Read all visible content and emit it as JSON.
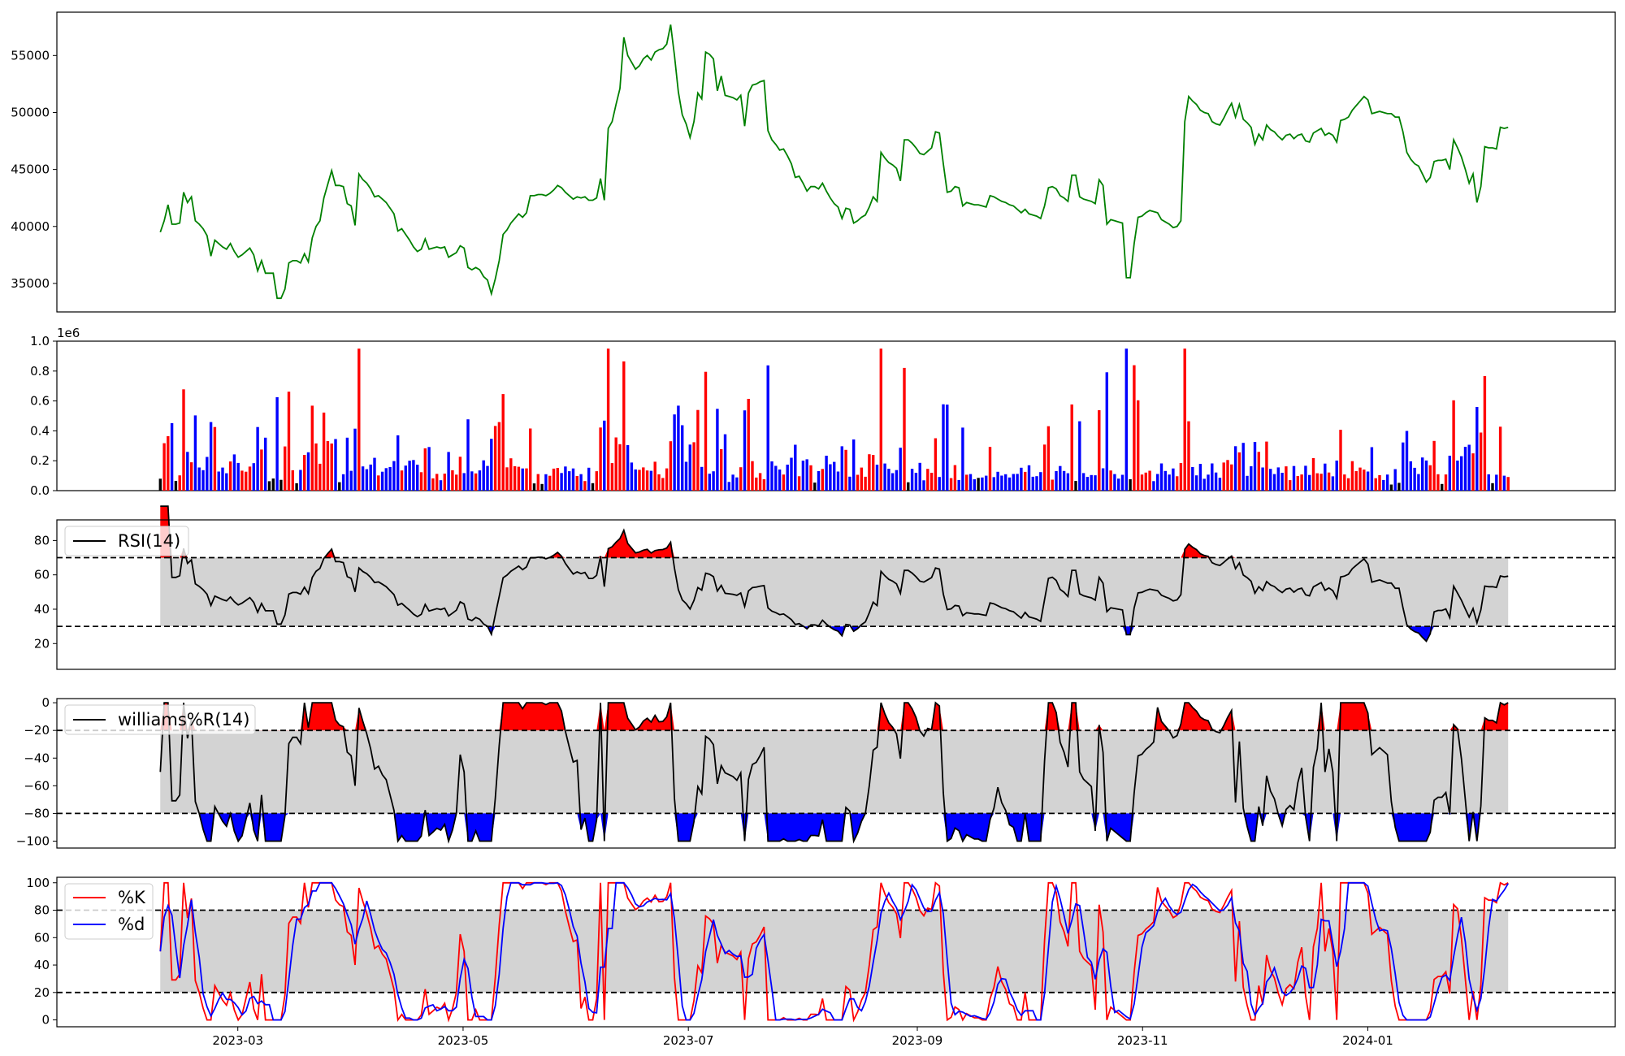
{
  "chart_data": [
    {
      "id": "price",
      "type": "line",
      "color": "#008000",
      "ylim": [
        32500,
        58800
      ],
      "yticks": [
        "35000",
        "40000",
        "45000",
        "50000",
        "55000"
      ],
      "x_start": "2023-02-08",
      "x_end": "2024-02-08",
      "values": [
        39500,
        40500,
        41900,
        40200,
        40200,
        40300,
        43000,
        42100,
        42600,
        40500,
        40200,
        39800,
        39200,
        37400,
        38800,
        38500,
        38200,
        38000,
        38500,
        37800,
        37300,
        37500,
        37800,
        38100,
        37500,
        36100,
        37000,
        35900,
        35900,
        35900,
        33700,
        33700,
        34500,
        36800,
        37000,
        37000,
        36800,
        37600,
        36900,
        39000,
        40000,
        40500,
        42500,
        43700,
        44900,
        43600,
        43600,
        43500,
        42000,
        41800,
        40100,
        44600,
        44100,
        43800,
        43300,
        42600,
        42700,
        42400,
        42100,
        41600,
        41100,
        39600,
        39800,
        39300,
        38800,
        38200,
        37800,
        38000,
        38900,
        38000,
        38100,
        38200,
        38100,
        38200,
        37300,
        37500,
        37700,
        38300,
        38100,
        36400,
        36200,
        36400,
        36200,
        35600,
        35300,
        34100,
        35400,
        37000,
        39300,
        39700,
        40300,
        40700,
        41100,
        40800,
        41200,
        42700,
        42700,
        42800,
        42800,
        42700,
        42900,
        43200,
        43600,
        43400,
        43000,
        42700,
        42400,
        42600,
        42500,
        42600,
        42300,
        42300,
        42500,
        44200,
        42300,
        48600,
        49200,
        50700,
        52100,
        56600,
        55000,
        54400,
        53800,
        54100,
        54700,
        55000,
        54600,
        55300,
        55500,
        55600,
        56000,
        57700,
        55000,
        51800,
        49800,
        49000,
        47800,
        49200,
        51700,
        51200,
        55300,
        55100,
        54700,
        51900,
        53200,
        51500,
        51400,
        51300,
        51100,
        51500,
        48800,
        51700,
        52400,
        52500,
        52700,
        52800,
        48400,
        47600,
        47200,
        46700,
        46800,
        46200,
        45500,
        44300,
        44400,
        43800,
        43100,
        43500,
        43500,
        43300,
        43800,
        43100,
        42500,
        42000,
        41700,
        40700,
        41600,
        41500,
        40300,
        40500,
        40800,
        41000,
        41700,
        42600,
        42200,
        46500,
        46000,
        45600,
        45400,
        45100,
        44000,
        47600,
        47600,
        47300,
        46900,
        46400,
        46300,
        46600,
        46900,
        48300,
        48200,
        45500,
        43000,
        43100,
        43500,
        43400,
        41800,
        42100,
        42000,
        41900,
        41900,
        41800,
        41700,
        42700,
        42600,
        42400,
        42200,
        42100,
        41900,
        41800,
        41500,
        41200,
        41500,
        41100,
        41000,
        40900,
        40700,
        41800,
        43400,
        43500,
        43300,
        42700,
        42500,
        42200,
        44500,
        44500,
        42600,
        42400,
        42300,
        42200,
        42000,
        44100,
        43600,
        40200,
        40600,
        40500,
        40400,
        40300,
        35500,
        35500,
        38500,
        40800,
        40900,
        41200,
        41400,
        41300,
        41200,
        40600,
        40400,
        40200,
        39900,
        40000,
        40500,
        49200,
        51400,
        51000,
        50700,
        50200,
        50000,
        49900,
        49200,
        49000,
        48900,
        49500,
        50200,
        50800,
        49600,
        50700,
        49400,
        49100,
        48700,
        47200,
        48100,
        47600,
        48900,
        48500,
        48300,
        47900,
        47600,
        48000,
        48100,
        47700,
        48000,
        48100,
        47500,
        47400,
        48200,
        48400,
        48600,
        48000,
        48200,
        48000,
        47400,
        49300,
        49400,
        49600,
        50200,
        50600,
        51000,
        51400,
        51100,
        49900,
        50000,
        50100,
        50000,
        49900,
        49900,
        49600,
        49600,
        48300,
        46500,
        45900,
        45500,
        45300,
        44600,
        43900,
        44300,
        45700,
        45800,
        45800,
        45900,
        45000,
        47600,
        46900,
        46100,
        45000,
        43800,
        44600,
        42100,
        43500,
        47000,
        46900,
        46900,
        46800,
        48700,
        48600,
        48700
      ]
    },
    {
      "id": "volume",
      "type": "bar",
      "multiplier_label": "1e6",
      "ylim": [
        0,
        1.0
      ],
      "yticks": [
        "0.0",
        "0.2",
        "0.4",
        "0.6",
        "0.8",
        "1.0"
      ],
      "up_color": "#ff0000",
      "down_color": "#0000ff",
      "flat_color": "#000000"
    },
    {
      "id": "rsi",
      "type": "line",
      "legend": "RSI(14)",
      "ylim": [
        5,
        92
      ],
      "yticks": [
        "20",
        "40",
        "60",
        "80"
      ],
      "bands": [
        30,
        70
      ],
      "fill_high": "#ff0000",
      "fill_low": "#0000ff",
      "band_fill": "#d3d3d3"
    },
    {
      "id": "williams",
      "type": "line",
      "legend": "williams%R(14)",
      "ylim": [
        -105,
        3
      ],
      "yticks": [
        "0",
        "−20",
        "−40",
        "−60",
        "−80",
        "−100"
      ],
      "bands": [
        -80,
        -20
      ],
      "fill_high": "#ff0000",
      "fill_low": "#0000ff",
      "band_fill": "#d3d3d3"
    },
    {
      "id": "stochastic",
      "type": "line",
      "legend_k": "%K",
      "legend_d": "%d",
      "k_color": "#ff0000",
      "d_color": "#0000ff",
      "ylim": [
        -5,
        104
      ],
      "yticks": [
        "0",
        "20",
        "40",
        "60",
        "80",
        "100"
      ],
      "bands": [
        20,
        80
      ],
      "band_fill": "#d3d3d3"
    }
  ],
  "x_axis": {
    "range": [
      "2023-01-11",
      "2024-03-08"
    ],
    "ticks": [
      {
        "label": "2023-03",
        "date": "2023-03-01"
      },
      {
        "label": "2023-05",
        "date": "2023-05-01"
      },
      {
        "label": "2023-07",
        "date": "2023-07-01"
      },
      {
        "label": "2023-09",
        "date": "2023-09-01"
      },
      {
        "label": "2023-11",
        "date": "2023-11-01"
      },
      {
        "label": "2024-01",
        "date": "2024-01-01"
      }
    ]
  }
}
